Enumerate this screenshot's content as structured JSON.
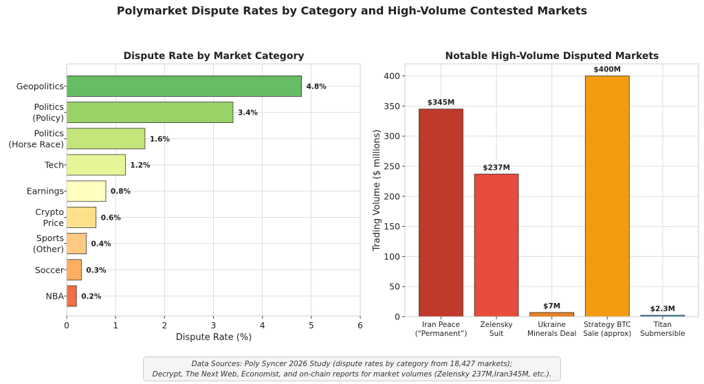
{
  "title": "Polymarket Dispute Rates by Category and High-Volume Contested Markets",
  "footnote": {
    "line1": "Data Sources: Poly Syncer 2026 Study (dispute rates by category from 18,427 markets);",
    "line2": "Decrypt, The Next Web, Economist, and on-chain reports for market volumes (Zelensky 237M,Iran345M, etc.)."
  },
  "chart_data": [
    {
      "type": "bar",
      "orientation": "horizontal",
      "title": "Dispute Rate by Market Category",
      "xlabel": "Dispute Rate (%)",
      "ylabel": "",
      "xlim": [
        0,
        6
      ],
      "xticks": [
        0,
        1,
        2,
        3,
        4,
        5,
        6
      ],
      "grid": true,
      "categories": [
        [
          "NBA"
        ],
        [
          "Soccer"
        ],
        [
          "Sports",
          "(Other)"
        ],
        [
          "Crypto",
          "Price"
        ],
        [
          "Earnings"
        ],
        [
          "Tech"
        ],
        [
          "Politics",
          "(Horse Race)"
        ],
        [
          "Politics",
          "(Policy)"
        ],
        [
          "Geopolitics"
        ]
      ],
      "values": [
        0.2,
        0.3,
        0.4,
        0.6,
        0.8,
        1.2,
        1.6,
        3.4,
        4.8
      ],
      "value_labels": [
        "0.2%",
        "0.3%",
        "0.4%",
        "0.6%",
        "0.8%",
        "1.2%",
        "1.6%",
        "3.4%",
        "4.8%"
      ],
      "colors": [
        "#f46d43",
        "#fdae61",
        "#fec980",
        "#fee08b",
        "#ffffbf",
        "#e6f598",
        "#c2e67a",
        "#99d368",
        "#66bd63"
      ]
    },
    {
      "type": "bar",
      "orientation": "vertical",
      "title": "Notable High-Volume Disputed Markets",
      "xlabel": "",
      "ylabel": "Trading Volume ($ millions)",
      "ylim": [
        0,
        420
      ],
      "yticks": [
        0,
        50,
        100,
        150,
        200,
        250,
        300,
        350,
        400
      ],
      "grid": true,
      "categories": [
        [
          "Iran Peace",
          "(“Permanent”)"
        ],
        [
          "Zelensky",
          "Suit"
        ],
        [
          "Ukraine",
          "Minerals Deal"
        ],
        [
          "Strategy BTC",
          "Sale (approx)"
        ],
        [
          "Titan",
          "Submersible"
        ]
      ],
      "values": [
        345,
        237,
        7,
        400,
        2.3
      ],
      "value_labels": [
        "$345M",
        "$237M",
        "$7M",
        "$400M",
        "$2.3M"
      ],
      "colors": [
        "#c0392b",
        "#e74c3c",
        "#e67e22",
        "#f39c12",
        "#2980b9"
      ]
    }
  ]
}
